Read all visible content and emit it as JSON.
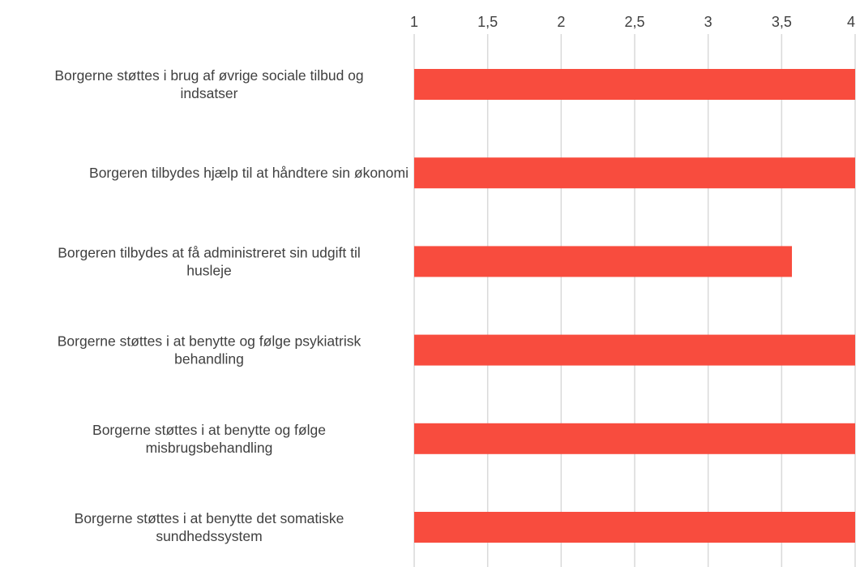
{
  "chart_data": {
    "type": "bar",
    "orientation": "horizontal",
    "xlim": [
      1,
      4
    ],
    "xticks": [
      1,
      1.5,
      2,
      2.5,
      3,
      3.5,
      4
    ],
    "xtick_labels": [
      "1",
      "1,5",
      "2",
      "2,5",
      "3",
      "3,5",
      "4"
    ],
    "xaxis_position": "top",
    "grid": true,
    "bar_color": "#f84c3e",
    "categories": [
      [
        "Borgerne støttes i brug af øvrige sociale tilbud og",
        "indsatser"
      ],
      [
        "Borgeren tilbydes hjælp til at håndtere sin økonomi"
      ],
      [
        "Borgeren tilbydes at få administreret sin udgift til",
        "husleje"
      ],
      [
        "Borgerne støttes i at benytte og følge psykiatrisk",
        "behandling"
      ],
      [
        "Borgerne støttes i at benytte og følge",
        "misbrugsbehandling"
      ],
      [
        "Borgerne støttes i at benytte det somatiske",
        "sundhedssystem"
      ]
    ],
    "values": [
      4,
      4,
      3.57,
      4,
      4,
      4
    ]
  }
}
